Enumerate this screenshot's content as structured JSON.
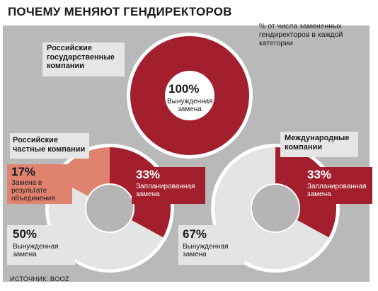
{
  "title": "ПОЧЕМУ МЕНЯЮТ ГЕНДИРЕКТОРОВ",
  "note": "% от числа замененных гендиректоров в каждой категории",
  "source": "ИСТОЧНИК: BOOZ",
  "colors": {
    "panel": "#b9b9b9",
    "forced": "#a31f2e",
    "planned": "#a31f2e",
    "merger": "#df8270",
    "ring_light": "#e4e4e4",
    "hole": "#b5b5b5",
    "header_box": "#e6e6e6"
  },
  "chart_data": [
    {
      "type": "pie",
      "title": "Российские государственные компании",
      "slices": [
        {
          "label": "Вынужденная замена",
          "value": 100
        }
      ]
    },
    {
      "type": "pie",
      "title": "Российские частные компании",
      "slices": [
        {
          "label": "Запланированная замена",
          "value": 33
        },
        {
          "label": "Вынужденная замена",
          "value": 50
        },
        {
          "label": "Замена в результате объединения",
          "value": 17
        }
      ]
    },
    {
      "type": "pie",
      "title": "Международные компании",
      "slices": [
        {
          "label": "Запланированная замена",
          "value": 33
        },
        {
          "label": "Вынужденная замена",
          "value": 67
        }
      ]
    }
  ],
  "labels": {
    "state": {
      "title": "Российские государственные компании",
      "pct": "100%",
      "cap": "Вынужденная замена"
    },
    "private": {
      "title": "Российские частные компании",
      "merger_pct": "17%",
      "merger_cap": "Замена в результате объединения",
      "planned_pct": "33%",
      "planned_cap": "Запланированная замена",
      "forced_pct": "50%",
      "forced_cap": "Вынужденная замена"
    },
    "intl": {
      "title": "Международные компании",
      "planned_pct": "33%",
      "planned_cap": "Запланированная замена",
      "forced_pct": "67%",
      "forced_cap": "Вынужденная замена"
    }
  }
}
